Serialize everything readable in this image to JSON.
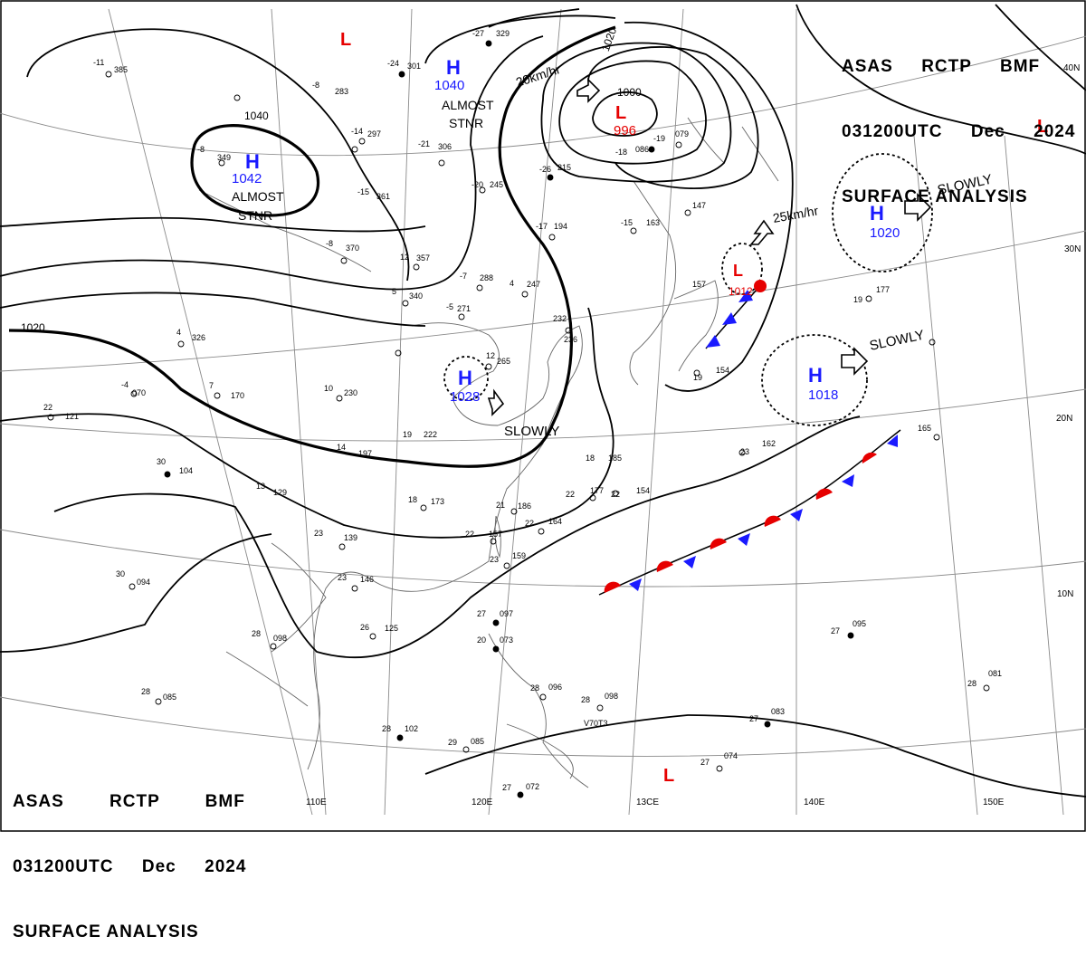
{
  "header": {
    "line1": [
      "ASAS",
      "RCTP",
      "BMF"
    ],
    "line2": [
      "031200UTC",
      "Dec",
      "2024"
    ],
    "line3": "SURFACE ANALYSIS"
  },
  "colors": {
    "high": "#1a1aff",
    "low": "#e60000",
    "isobar": "#000000",
    "grid": "#888888",
    "coast": "#555555"
  },
  "latitude_labels": [
    "40N",
    "30N",
    "20N",
    "10N"
  ],
  "longitude_labels": [
    "110E",
    "120E",
    "13CE",
    "140E",
    "150E"
  ],
  "pressure_centers": [
    {
      "type": "H",
      "value": "1042",
      "note": "ALMOST STNR"
    },
    {
      "type": "H",
      "value": "1040",
      "note": "ALMOST STNR"
    },
    {
      "type": "L",
      "value": "996",
      "note": ""
    },
    {
      "type": "H",
      "value": "1028",
      "note": "SLOWLY"
    },
    {
      "type": "H",
      "value": "1020",
      "note": "SLOWLY"
    },
    {
      "type": "H",
      "value": "1018",
      "note": "SLOWLY"
    },
    {
      "type": "L",
      "value": "1012",
      "note": ""
    },
    {
      "type": "L",
      "value": "",
      "note": ""
    },
    {
      "type": "L",
      "value": "",
      "note": ""
    },
    {
      "type": "L",
      "value": "",
      "note": ""
    }
  ],
  "movement_labels": [
    "20km/hr",
    "25km/hr"
  ],
  "isobar_labels": [
    "1040",
    "1020",
    "1020",
    "1000"
  ],
  "stations": [
    {
      "a": "-11",
      "b": "385"
    },
    {
      "a": "-8",
      "b": "349"
    },
    {
      "a": "-15",
      "b": "361"
    },
    {
      "a": "-8",
      "b": "370"
    },
    {
      "a": "12",
      "b": "357"
    },
    {
      "a": "5",
      "b": "340"
    },
    {
      "a": "-7",
      "b": "288"
    },
    {
      "a": "4",
      "b": "247"
    },
    {
      "a": "-5",
      "b": "271"
    },
    {
      "a": "-17",
      "b": "194"
    },
    {
      "a": "-15",
      "b": "163"
    },
    {
      "a": "4",
      "b": "326"
    },
    {
      "a": "-4",
      "b": "070"
    },
    {
      "a": "22",
      "b": "121"
    },
    {
      "a": "30",
      "b": "104"
    },
    {
      "a": "7",
      "b": "170"
    },
    {
      "a": "10",
      "b": "230"
    },
    {
      "a": "12",
      "b": "265"
    },
    {
      "a": "18",
      "b": "173"
    },
    {
      "a": "21",
      "b": "186"
    },
    {
      "a": "22",
      "b": "177"
    },
    {
      "a": "22",
      "b": "154"
    },
    {
      "a": "22",
      "b": "164"
    },
    {
      "a": "22",
      "b": "157"
    },
    {
      "a": "23",
      "b": "159"
    },
    {
      "a": "23",
      "b": "139"
    },
    {
      "a": "23",
      "b": "146"
    },
    {
      "a": "26",
      "b": "125"
    },
    {
      "a": "28",
      "b": "098"
    },
    {
      "a": "30",
      "b": "094"
    },
    {
      "a": "28",
      "b": "085"
    },
    {
      "a": "28",
      "b": "102"
    },
    {
      "a": "29",
      "b": "085"
    },
    {
      "a": "27",
      "b": "097"
    },
    {
      "a": "20",
      "b": "073"
    },
    {
      "a": "28",
      "b": "096"
    },
    {
      "a": "28",
      "b": "098"
    },
    {
      "a": "27",
      "b": "095"
    },
    {
      "a": "28",
      "b": "081"
    },
    {
      "a": "27",
      "b": "083"
    },
    {
      "a": "27",
      "b": "074"
    },
    {
      "a": "27",
      "b": "072"
    },
    {
      "a": "19",
      "b": "154"
    },
    {
      "a": "23",
      "b": "162"
    },
    {
      "a": "19",
      "b": "177"
    },
    {
      "a": "165",
      "b": ""
    },
    {
      "a": "-18",
      "b": "086"
    },
    {
      "a": "-19",
      "b": "079"
    },
    {
      "a": "-27",
      "b": "329"
    },
    {
      "a": "-24",
      "b": "301"
    },
    {
      "a": "-8",
      "b": "283"
    },
    {
      "a": "-14",
      "b": "297"
    },
    {
      "a": "-21",
      "b": "306"
    },
    {
      "a": "-20",
      "b": "245"
    },
    {
      "a": "-26",
      "b": "215"
    },
    {
      "a": "18",
      "b": "185"
    },
    {
      "a": "14",
      "b": "197"
    },
    {
      "a": "19",
      "b": "222"
    },
    {
      "a": "13",
      "b": "129"
    },
    {
      "a": "V70T3",
      "b": ""
    },
    {
      "a": "147",
      "b": ""
    },
    {
      "a": "157",
      "b": ""
    },
    {
      "a": "236",
      "b": ""
    },
    {
      "a": "232",
      "b": ""
    }
  ]
}
